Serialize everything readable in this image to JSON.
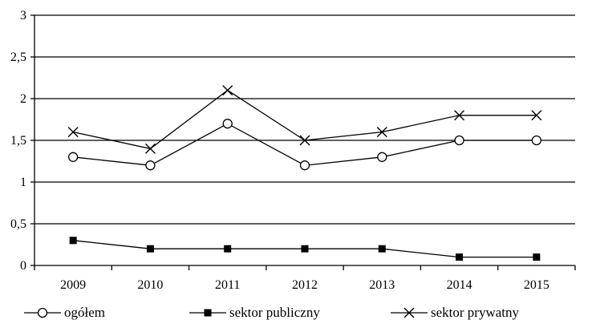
{
  "chart_data": {
    "type": "line",
    "categories": [
      "2009",
      "2010",
      "2011",
      "2012",
      "2013",
      "2014",
      "2015"
    ],
    "ylim": [
      0,
      3
    ],
    "y_ticks": [
      0,
      0.5,
      1,
      1.5,
      2,
      2.5,
      3
    ],
    "y_tick_labels": [
      "0",
      "0,5",
      "1",
      "1,5",
      "2",
      "2,5",
      "3"
    ],
    "grid": true,
    "legend_position": "bottom",
    "series": [
      {
        "name": "ogółem",
        "marker": "circle",
        "color": "#000000",
        "values": [
          1.3,
          1.2,
          1.7,
          1.2,
          1.3,
          1.5,
          1.5
        ]
      },
      {
        "name": "sektor publiczny",
        "marker": "square",
        "color": "#000000",
        "values": [
          0.3,
          0.2,
          0.2,
          0.2,
          0.2,
          0.1,
          0.1
        ]
      },
      {
        "name": "sektor prywatny",
        "marker": "x",
        "color": "#000000",
        "values": [
          1.6,
          1.4,
          2.1,
          1.5,
          1.6,
          1.8,
          1.8
        ]
      }
    ]
  }
}
